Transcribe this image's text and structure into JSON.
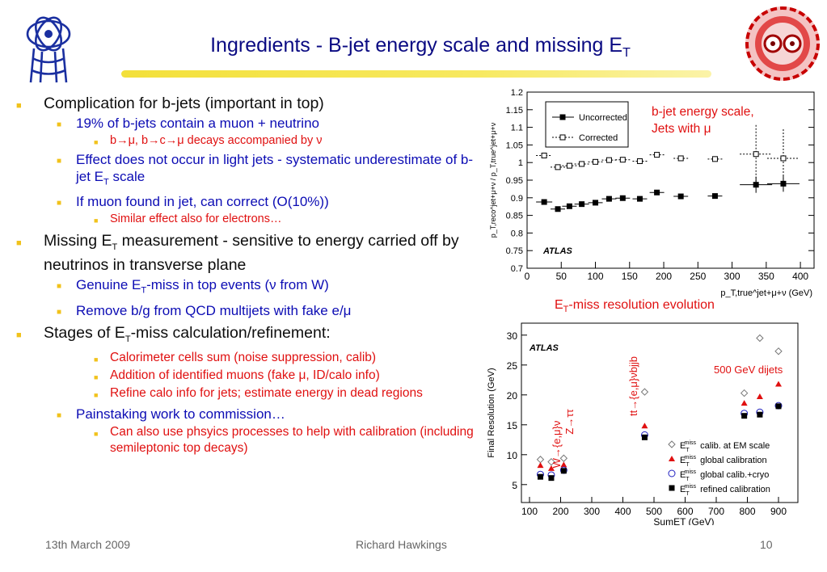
{
  "title": {
    "main": "Ingredients - B-jet energy scale and missing E",
    "sub": "T"
  },
  "logos": {
    "left": "atlas-logo",
    "right": "lhc-ring-logo"
  },
  "bullets": [
    {
      "level": 1,
      "text": "Complication for b-jets (important in top)"
    },
    {
      "level": 2,
      "text": "19% of b-jets contain a muon + neutrino"
    },
    {
      "level": 3,
      "text": "b→μ, b→c→μ decays accompanied by ν"
    },
    {
      "level": 2,
      "parts": [
        "Effect does not occur in light jets - systematic underestimate of b-jet E",
        "T",
        " scale"
      ]
    },
    {
      "level": 2,
      "text": "If muon found in jet, can correct (O(10%))"
    },
    {
      "level": 3,
      "text": "Similar effect also for electrons…"
    },
    {
      "level": 1,
      "parts": [
        "Missing E",
        "T",
        " measurement - sensitive to energy carried off by neutrinos in transverse plane"
      ]
    },
    {
      "level": 2,
      "parts": [
        "Genuine E",
        "T",
        "-miss in top events (ν from W)"
      ]
    },
    {
      "level": 2,
      "text": "Remove b/g from QCD multijets with fake e/μ"
    },
    {
      "level": 1,
      "parts": [
        "Stages of E",
        "T",
        "-miss calculation/refinement:"
      ]
    },
    {
      "level": 3,
      "text": "Calorimeter cells sum (noise suppression, calib)"
    },
    {
      "level": 3,
      "text": "Addition of identified muons (fake μ, ID/calo info)"
    },
    {
      "level": 3,
      "text": "Refine calo info for jets; estimate energy in dead regions"
    },
    {
      "level": 2,
      "text": "Painstaking work to commission…"
    },
    {
      "level": 3,
      "text": "Can also use phsyics processes to help with calibration (including semileptonic top decays)"
    }
  ],
  "footer": {
    "date": "13th March 2009",
    "author": "Richard Hawkings",
    "page": "10"
  },
  "annotations": {
    "bjet_line1": "b-jet energy scale,",
    "bjet_line2": "Jets with μ",
    "etmiss_title_pre": "E",
    "etmiss_title_sub": "T",
    "etmiss_title_post": "-miss resolution evolution",
    "dijets": "500 GeV dijets",
    "w_label": "W→{e,μ}ν",
    "z_label": "Z→ττ",
    "tt_label": "tt→{e,μ}νbjjb"
  },
  "chart_data": [
    {
      "type": "scatter",
      "title": "",
      "xlabel": "p_T,true^jet+μ+ν (GeV)",
      "ylabel": "p_T,reco^jet+μ+ν / p_T,true^jet+μ+ν",
      "xlim": [
        0,
        420
      ],
      "ylim": [
        0.7,
        1.2
      ],
      "xticks": [
        0,
        50,
        100,
        150,
        200,
        250,
        300,
        350,
        400
      ],
      "yticks": [
        0.7,
        0.75,
        0.8,
        0.85,
        0.9,
        0.95,
        1,
        1.05,
        1.1,
        1.15,
        1.2
      ],
      "label": "ATLAS",
      "legend_position": "top-left",
      "colors": {
        "uncorrected": "#000000",
        "corrected": "#000000"
      },
      "series": [
        {
          "name": "Uncorrected",
          "marker": "filled-square",
          "line": "solid",
          "x": [
            25,
            45,
            62,
            80,
            100,
            120,
            140,
            165,
            190,
            225,
            275,
            335,
            375
          ],
          "y": [
            0.888,
            0.868,
            0.876,
            0.882,
            0.886,
            0.897,
            0.899,
            0.897,
            0.915,
            0.904,
            0.905,
            0.937,
            0.94
          ]
        },
        {
          "name": "Corrected",
          "marker": "open-square",
          "line": "dotted",
          "x": [
            25,
            45,
            62,
            80,
            100,
            120,
            140,
            165,
            190,
            225,
            275,
            335,
            375
          ],
          "y": [
            1.02,
            0.987,
            0.991,
            0.996,
            1.002,
            1.007,
            1.008,
            1.004,
            1.022,
            1.012,
            1.01,
            1.024,
            1.012
          ]
        }
      ]
    },
    {
      "type": "scatter",
      "title": "",
      "xlabel": "SumET (GeV)",
      "ylabel": "Final Resolution (GeV)",
      "xticks": [
        100,
        200,
        300,
        400,
        500,
        600,
        700,
        800,
        900
      ],
      "yticks": [
        5,
        10,
        15,
        20,
        25,
        30
      ],
      "ylim": [
        2,
        32
      ],
      "label": "ATLAS",
      "legend_position": "bottom-right",
      "colors": {
        "em": "#777777",
        "global": "#e01010",
        "cryo": "#2020c0",
        "refined": "#000000"
      },
      "series": [
        {
          "name_parts": [
            "E",
            "T",
            "miss",
            " calib. at EM scale"
          ],
          "marker": "open-diamond",
          "x": [
            135,
            170,
            210,
            470,
            790,
            840,
            910
          ],
          "y": [
            9.2,
            8.8,
            9.4,
            20.5,
            20.3,
            29.5,
            27.3
          ]
        },
        {
          "name_parts": [
            "E",
            "T",
            "miss",
            " global calibration"
          ],
          "marker": "filled-triangle",
          "x": [
            135,
            170,
            210,
            470,
            790,
            840,
            910
          ],
          "y": [
            8.2,
            7.7,
            8.3,
            14.8,
            18.6,
            19.7,
            21.8
          ]
        },
        {
          "name_parts": [
            "E",
            "T",
            "miss",
            " global calib.+cryo"
          ],
          "marker": "open-circle",
          "x": [
            135,
            170,
            210,
            470,
            790,
            840,
            910
          ],
          "y": [
            6.7,
            6.6,
            7.4,
            13.3,
            16.9,
            17.1,
            18.2
          ]
        },
        {
          "name_parts": [
            "E",
            "T",
            "miss",
            " refined calibration"
          ],
          "marker": "filled-square",
          "x": [
            135,
            170,
            210,
            470,
            790,
            840,
            910
          ],
          "y": [
            6.3,
            6.1,
            7.3,
            12.9,
            16.5,
            16.7,
            18.1
          ]
        }
      ]
    }
  ]
}
